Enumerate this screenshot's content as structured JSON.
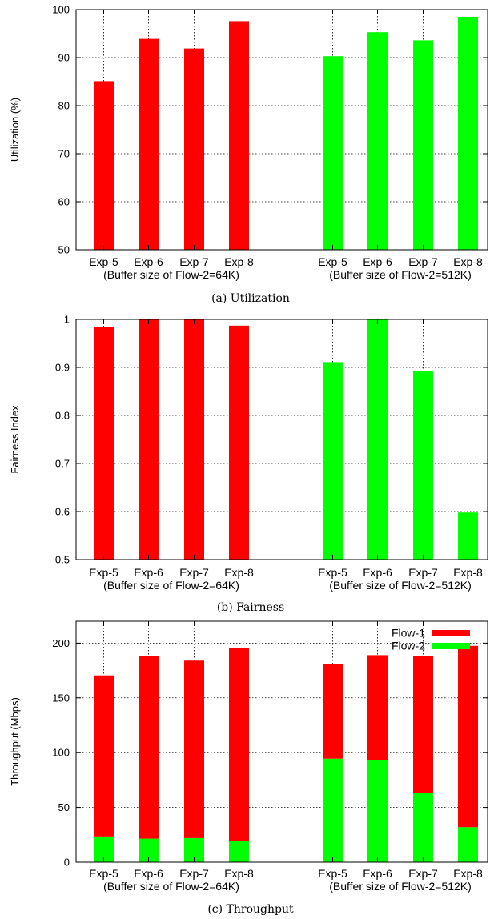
{
  "colors": {
    "flow1": "#ff0000",
    "flow2": "#00ff00",
    "axis": "#000000",
    "grid": "#000000"
  },
  "chart_data": [
    {
      "type": "bar",
      "caption": "(a) Utilization",
      "ylabel": "Utilization (%)",
      "ylim": [
        50,
        100
      ],
      "yticks": [
        50,
        60,
        70,
        80,
        90,
        100
      ],
      "ytick_labels": [
        "50",
        "60",
        "70",
        "80",
        "90",
        "100"
      ],
      "grid": true,
      "categories": [
        "Exp-5",
        "Exp-6",
        "Exp-7",
        "Exp-8",
        "Exp-5",
        "Exp-6",
        "Exp-7",
        "Exp-8"
      ],
      "group_labels": [
        "(Buffer size of Flow-2=64K)",
        "(Buffer size of Flow-2=512K)"
      ],
      "values": [
        85.1,
        93.9,
        91.9,
        97.6,
        90.3,
        95.3,
        93.6,
        98.5
      ],
      "bar_colors": [
        "flow1",
        "flow1",
        "flow1",
        "flow1",
        "flow2",
        "flow2",
        "flow2",
        "flow2"
      ]
    },
    {
      "type": "bar",
      "caption": "(b) Fairness",
      "ylabel": "Fairness Index",
      "ylim": [
        0.5,
        1.0
      ],
      "yticks": [
        0.5,
        0.6,
        0.7,
        0.8,
        0.9,
        1.0
      ],
      "ytick_labels": [
        "0.5",
        "0.6",
        "0.7",
        "0.8",
        "0.9",
        "1"
      ],
      "grid": true,
      "categories": [
        "Exp-5",
        "Exp-6",
        "Exp-7",
        "Exp-8",
        "Exp-5",
        "Exp-6",
        "Exp-7",
        "Exp-8"
      ],
      "group_labels": [
        "(Buffer size of Flow-2=64K)",
        "(Buffer size of Flow-2=512K)"
      ],
      "values": [
        0.985,
        1.0,
        1.0,
        0.987,
        0.911,
        1.0,
        0.892,
        0.598
      ],
      "bar_colors": [
        "flow1",
        "flow1",
        "flow1",
        "flow1",
        "flow2",
        "flow2",
        "flow2",
        "flow2"
      ]
    },
    {
      "type": "bar",
      "stacked": true,
      "caption": "(c) Throughput",
      "ylabel": "Throughput (Mbps)",
      "ylim": [
        0,
        220
      ],
      "yticks": [
        0,
        50,
        100,
        150,
        200
      ],
      "ytick_labels": [
        "0",
        "50",
        "100",
        "150",
        "200"
      ],
      "grid": true,
      "legend_position": "top-right",
      "categories": [
        "Exp-5",
        "Exp-6",
        "Exp-7",
        "Exp-8",
        "Exp-5",
        "Exp-6",
        "Exp-7",
        "Exp-8"
      ],
      "group_labels": [
        "(Buffer size of Flow-2=64K)",
        "(Buffer size of Flow-2=512K)"
      ],
      "series": [
        {
          "name": "Flow-2",
          "color": "flow2",
          "values": [
            23.5,
            21.5,
            22.0,
            19.0,
            94.5,
            93.0,
            63.0,
            32.0
          ]
        },
        {
          "name": "Flow-1",
          "color": "flow1",
          "values": [
            147.0,
            167.0,
            162.0,
            176.5,
            86.5,
            96.0,
            125.0,
            165.5
          ]
        }
      ],
      "legend_order": [
        "Flow-1",
        "Flow-2"
      ]
    }
  ]
}
